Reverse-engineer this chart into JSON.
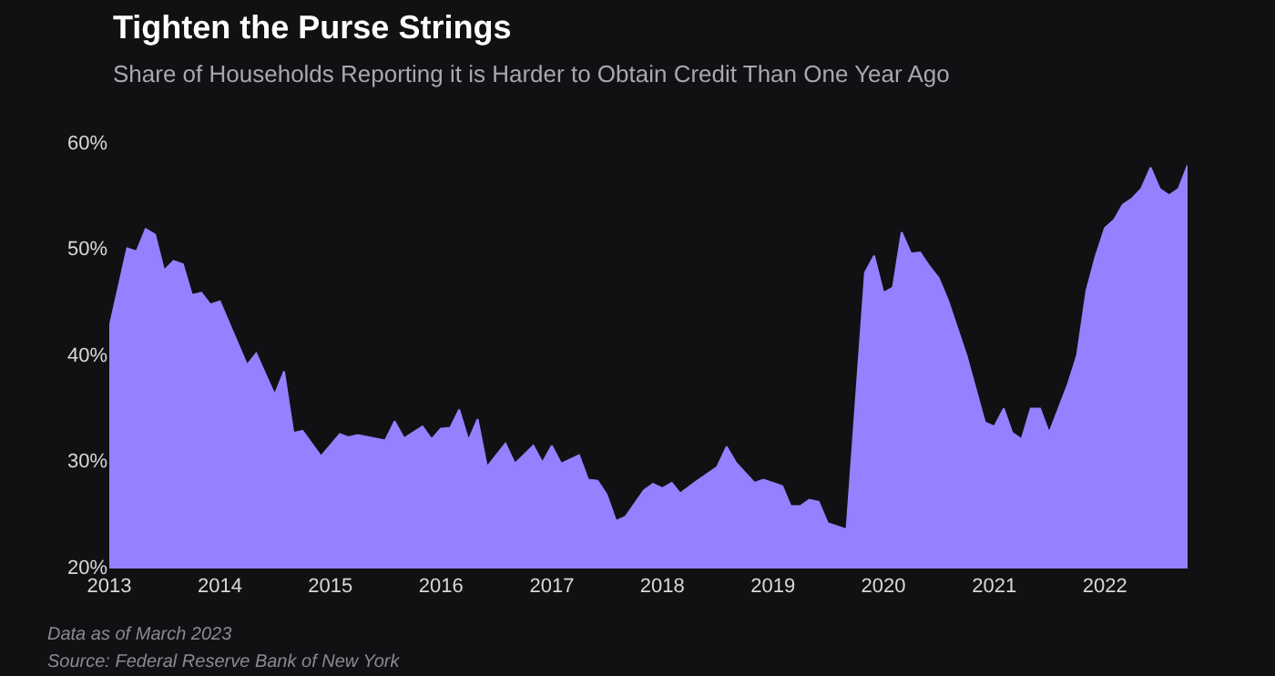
{
  "chart_data": {
    "type": "area",
    "title": "Tighten the Purse Strings",
    "subtitle": "Share of Households Reporting it is Harder to Obtain Credit Than One Year Ago",
    "x": [
      "2013-01",
      "2013-03",
      "2013-04",
      "2013-05",
      "2013-06",
      "2013-07",
      "2013-08",
      "2013-09",
      "2013-10",
      "2013-11",
      "2013-12",
      "2014-01",
      "2014-04",
      "2014-05",
      "2014-07",
      "2014-08",
      "2014-09",
      "2014-10",
      "2014-12",
      "2015-02",
      "2015-03",
      "2015-04",
      "2015-07",
      "2015-08",
      "2015-09",
      "2015-11",
      "2015-12",
      "2016-01",
      "2016-02",
      "2016-03",
      "2016-04",
      "2016-05",
      "2016-06",
      "2016-08",
      "2016-09",
      "2016-11",
      "2016-12",
      "2017-01",
      "2017-02",
      "2017-04",
      "2017-05",
      "2017-06",
      "2017-07",
      "2017-08",
      "2017-09",
      "2017-11",
      "2017-12",
      "2018-01",
      "2018-02",
      "2018-03",
      "2018-05",
      "2018-07",
      "2018-08",
      "2018-09",
      "2018-11",
      "2018-12",
      "2019-02",
      "2019-03",
      "2019-04",
      "2019-05",
      "2019-06",
      "2019-07",
      "2019-09",
      "2019-11",
      "2019-12",
      "2020-01",
      "2020-02",
      "2020-03",
      "2020-04",
      "2020-05",
      "2020-06",
      "2020-07",
      "2020-08",
      "2020-10",
      "2020-12",
      "2021-01",
      "2021-02",
      "2021-03",
      "2021-04",
      "2021-05",
      "2021-06",
      "2021-07",
      "2021-09",
      "2021-10",
      "2021-11",
      "2021-12",
      "2022-01",
      "2022-02",
      "2022-03",
      "2022-04",
      "2022-05",
      "2022-06",
      "2022-07",
      "2022-08",
      "2022-09",
      "2022-10"
    ],
    "series": [
      {
        "color": "#9580ff",
        "values": [
          42.5,
          50.0,
          49.7,
          51.8,
          51.3,
          47.9,
          48.8,
          48.5,
          45.6,
          45.8,
          44.7,
          45.0,
          39.0,
          40.1,
          36.2,
          38.4,
          32.6,
          32.8,
          30.4,
          32.5,
          32.2,
          32.4,
          31.9,
          33.7,
          32.1,
          33.2,
          32.0,
          33.0,
          33.1,
          34.8,
          31.9,
          33.9,
          29.4,
          31.6,
          29.7,
          31.4,
          29.8,
          31.4,
          29.7,
          30.5,
          28.2,
          28.1,
          26.8,
          24.3,
          24.7,
          27.2,
          27.8,
          27.4,
          27.9,
          26.9,
          28.2,
          29.4,
          31.3,
          29.8,
          27.9,
          28.2,
          27.6,
          25.7,
          25.7,
          26.3,
          26.1,
          24.1,
          23.5,
          47.7,
          49.3,
          45.8,
          46.3,
          51.5,
          49.5,
          49.6,
          48.3,
          47.2,
          45.1,
          39.9,
          33.6,
          33.2,
          34.9,
          32.6,
          32.0,
          34.9,
          34.9,
          32.6,
          37.2,
          39.9,
          46.0,
          49.2,
          51.9,
          52.7,
          54.1,
          54.7,
          55.6,
          57.6,
          55.6,
          55.0,
          55.6,
          57.8
        ]
      }
    ],
    "xlim": [
      "2013-01",
      "2022-10"
    ],
    "xticks": [
      {
        "value": "2013-01",
        "label": "2013"
      },
      {
        "value": "2014-01",
        "label": "2014"
      },
      {
        "value": "2015-01",
        "label": "2015"
      },
      {
        "value": "2016-01",
        "label": "2016"
      },
      {
        "value": "2017-01",
        "label": "2017"
      },
      {
        "value": "2018-01",
        "label": "2018"
      },
      {
        "value": "2019-01",
        "label": "2019"
      },
      {
        "value": "2020-01",
        "label": "2020"
      },
      {
        "value": "2021-01",
        "label": "2021"
      },
      {
        "value": "2022-01",
        "label": "2022"
      }
    ],
    "ylim": [
      20,
      60
    ],
    "yticks": [
      {
        "value": 20,
        "label": "20%"
      },
      {
        "value": 30,
        "label": "30%"
      },
      {
        "value": 40,
        "label": "40%"
      },
      {
        "value": 50,
        "label": "50%"
      },
      {
        "value": 60,
        "label": "60%"
      }
    ],
    "grid": false,
    "annotations": [
      "Data as of March 2023",
      "Source: Federal Reserve Bank of New York"
    ]
  }
}
